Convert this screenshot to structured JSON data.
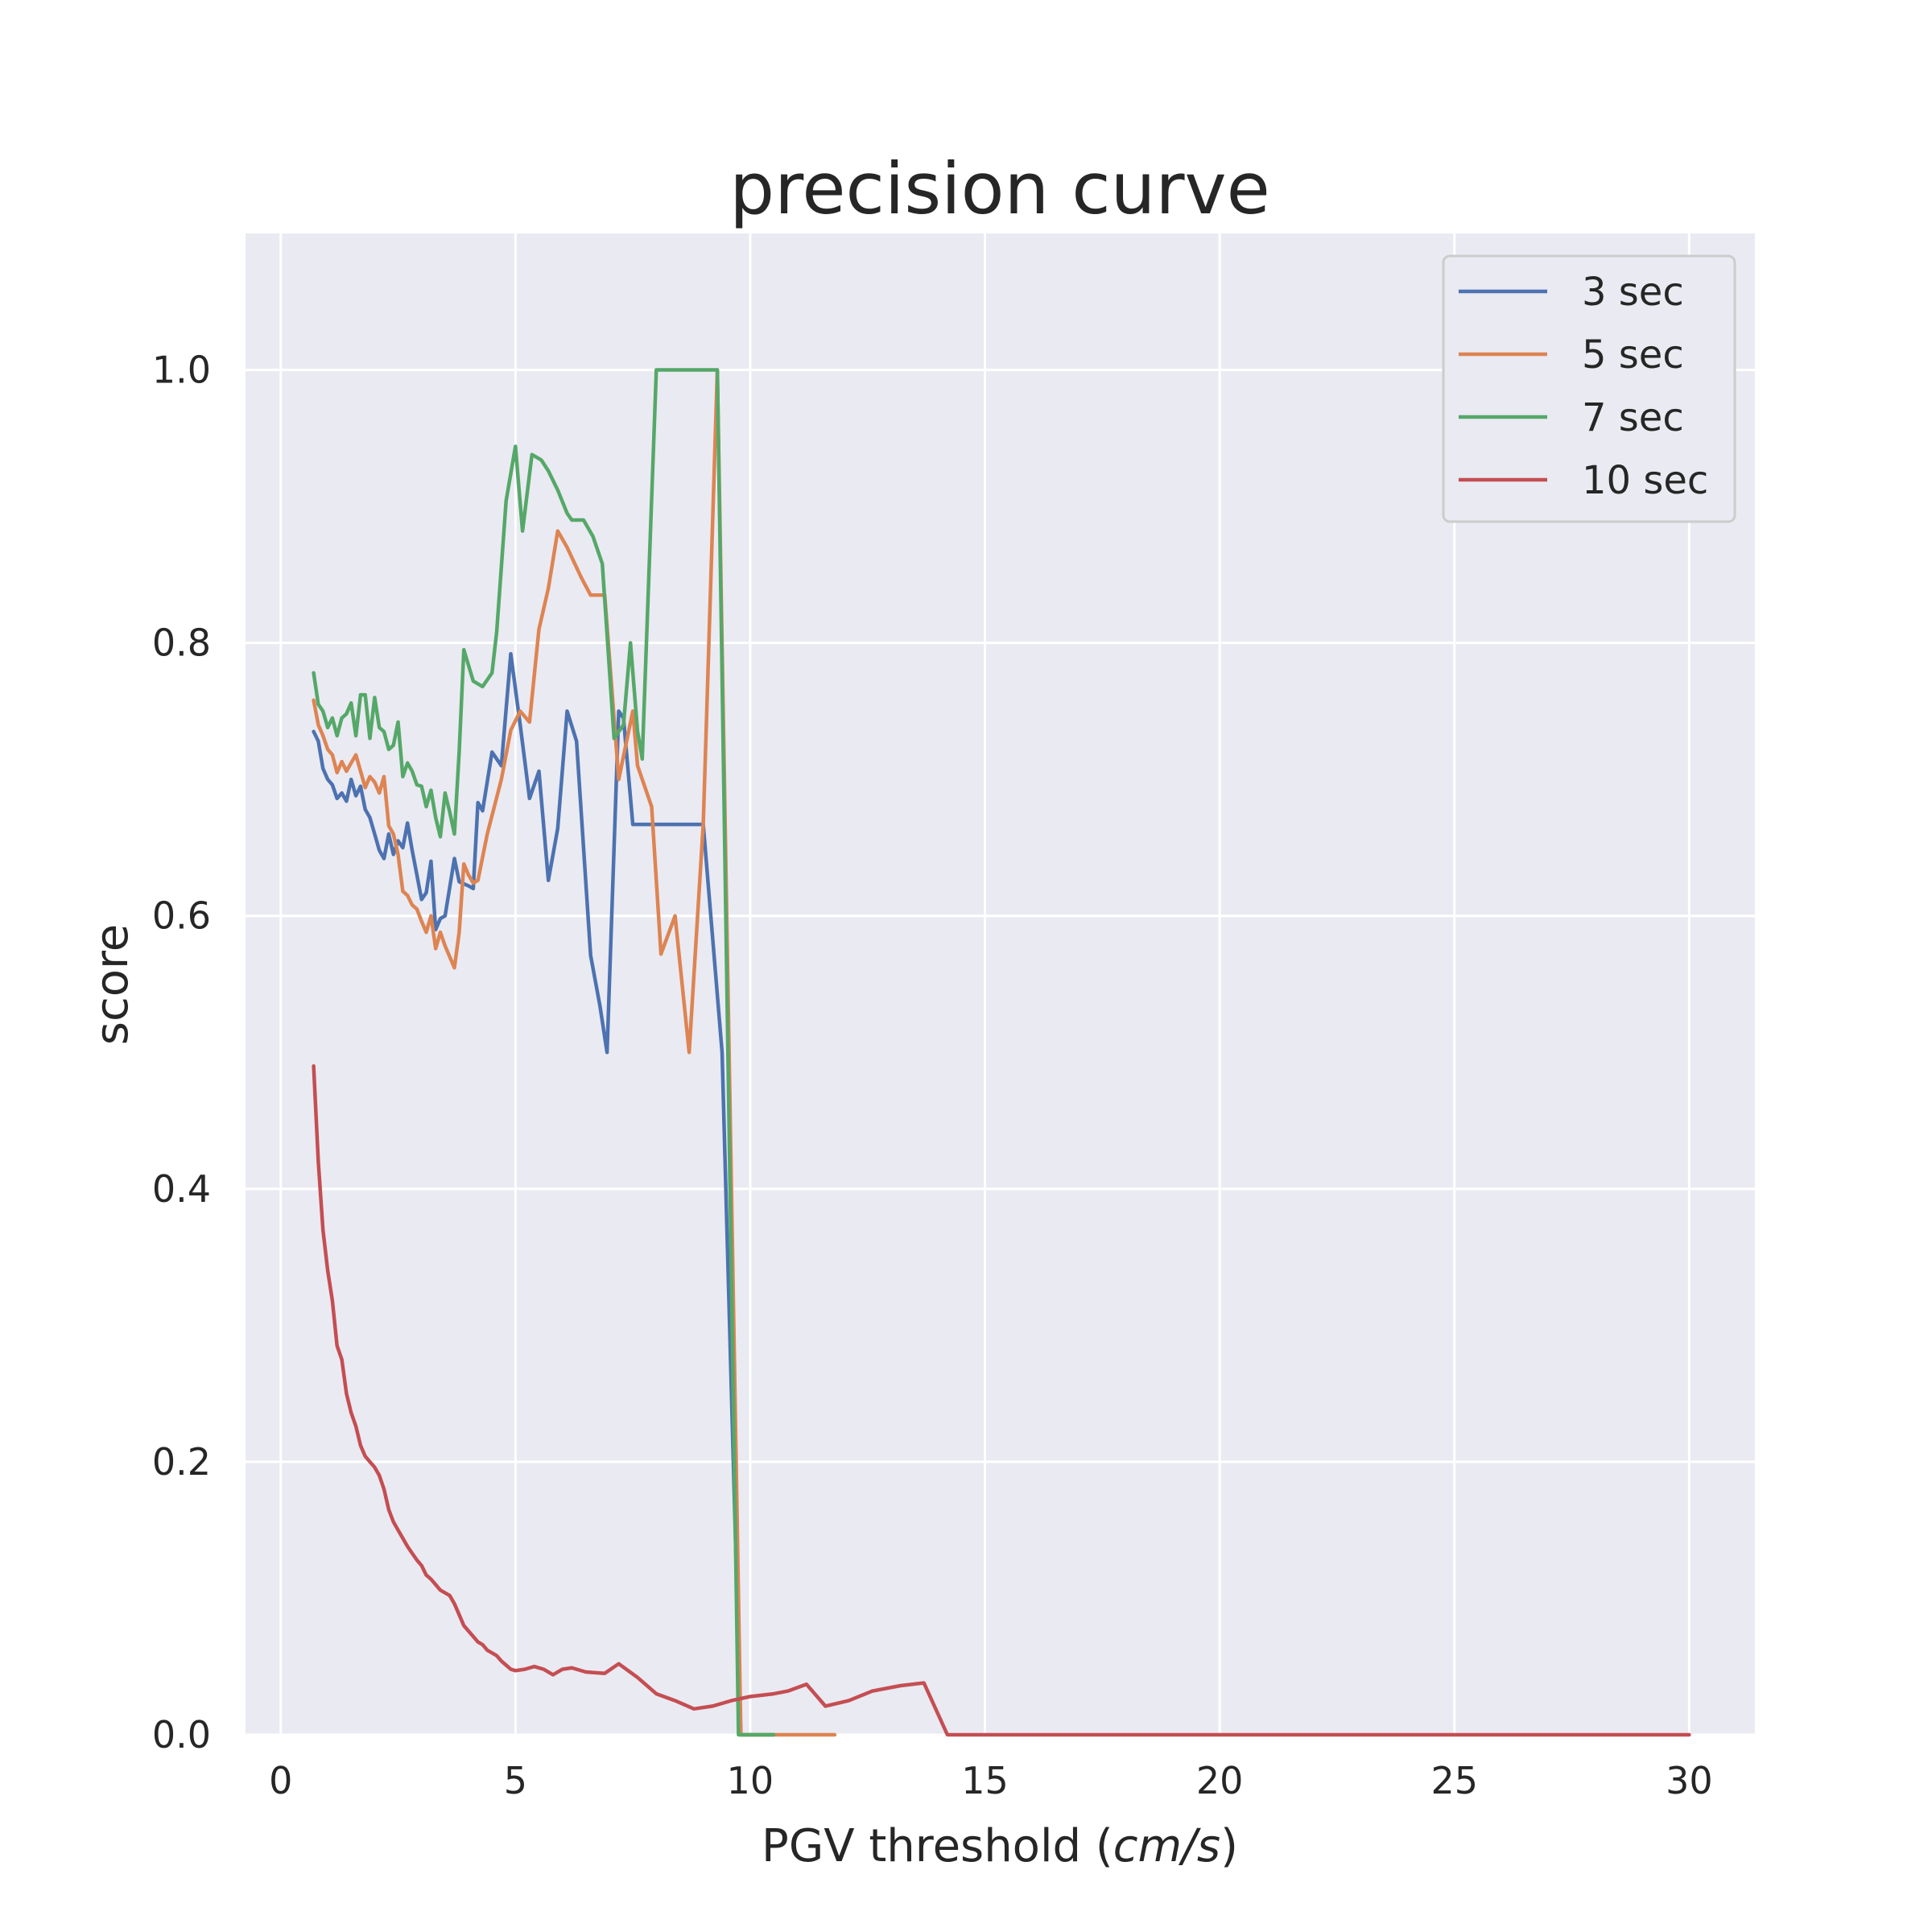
{
  "chart_data": {
    "type": "line",
    "title": "precision curve",
    "xlabel_text": "PGV threshold (",
    "xlabel_unit": "cm/s",
    "xlabel_close": ")",
    "ylabel": "score",
    "xlim": [
      -0.75,
      31.4
    ],
    "ylim": [
      0,
      1.1
    ],
    "xticks": [
      0,
      5,
      10,
      15,
      20,
      25,
      30
    ],
    "yticks": [
      0.0,
      0.2,
      0.4,
      0.6,
      0.8,
      1.0
    ],
    "xtick_labels": [
      "0",
      "5",
      "10",
      "15",
      "20",
      "25",
      "30"
    ],
    "ytick_labels": [
      "0.0",
      "0.2",
      "0.4",
      "0.6",
      "0.8",
      "1.0"
    ],
    "grid": true,
    "legend_position": "top-right",
    "background": "#eaeaf2",
    "grid_color": "#ffffff",
    "series": [
      {
        "name": "3 sec",
        "color": "#4c72b0",
        "points": [
          [
            0.7,
            0.735
          ],
          [
            0.8,
            0.728
          ],
          [
            0.9,
            0.708
          ],
          [
            1.0,
            0.7
          ],
          [
            1.1,
            0.696
          ],
          [
            1.2,
            0.686
          ],
          [
            1.3,
            0.69
          ],
          [
            1.4,
            0.684
          ],
          [
            1.5,
            0.7
          ],
          [
            1.6,
            0.688
          ],
          [
            1.7,
            0.695
          ],
          [
            1.8,
            0.678
          ],
          [
            1.9,
            0.672
          ],
          [
            2.0,
            0.66
          ],
          [
            2.1,
            0.648
          ],
          [
            2.2,
            0.642
          ],
          [
            2.3,
            0.66
          ],
          [
            2.4,
            0.645
          ],
          [
            2.5,
            0.655
          ],
          [
            2.6,
            0.65
          ],
          [
            2.7,
            0.668
          ],
          [
            2.8,
            0.648
          ],
          [
            2.9,
            0.63
          ],
          [
            3.0,
            0.612
          ],
          [
            3.1,
            0.617
          ],
          [
            3.2,
            0.64
          ],
          [
            3.3,
            0.59
          ],
          [
            3.4,
            0.598
          ],
          [
            3.5,
            0.6
          ],
          [
            3.7,
            0.642
          ],
          [
            3.8,
            0.625
          ],
          [
            4.0,
            0.622
          ],
          [
            4.1,
            0.62
          ],
          [
            4.2,
            0.683
          ],
          [
            4.3,
            0.677
          ],
          [
            4.5,
            0.72
          ],
          [
            4.7,
            0.71
          ],
          [
            4.9,
            0.792
          ],
          [
            5.1,
            0.74
          ],
          [
            5.3,
            0.686
          ],
          [
            5.5,
            0.706
          ],
          [
            5.7,
            0.626
          ],
          [
            5.9,
            0.664
          ],
          [
            6.1,
            0.75
          ],
          [
            6.3,
            0.728
          ],
          [
            6.6,
            0.571
          ],
          [
            6.8,
            0.534
          ],
          [
            6.95,
            0.5
          ],
          [
            7.2,
            0.75
          ],
          [
            7.3,
            0.745
          ],
          [
            7.5,
            0.667
          ],
          [
            9.0,
            0.667
          ],
          [
            9.4,
            0.5
          ],
          [
            9.8,
            0.0
          ],
          [
            10.5,
            0.0
          ]
        ]
      },
      {
        "name": "5 sec",
        "color": "#dd8452",
        "points": [
          [
            0.7,
            0.758
          ],
          [
            0.8,
            0.74
          ],
          [
            0.9,
            0.732
          ],
          [
            1.0,
            0.722
          ],
          [
            1.1,
            0.718
          ],
          [
            1.2,
            0.705
          ],
          [
            1.3,
            0.713
          ],
          [
            1.4,
            0.706
          ],
          [
            1.5,
            0.712
          ],
          [
            1.6,
            0.718
          ],
          [
            1.7,
            0.706
          ],
          [
            1.8,
            0.694
          ],
          [
            1.9,
            0.702
          ],
          [
            2.0,
            0.698
          ],
          [
            2.1,
            0.69
          ],
          [
            2.2,
            0.702
          ],
          [
            2.3,
            0.666
          ],
          [
            2.4,
            0.66
          ],
          [
            2.5,
            0.645
          ],
          [
            2.6,
            0.618
          ],
          [
            2.7,
            0.615
          ],
          [
            2.8,
            0.608
          ],
          [
            2.9,
            0.605
          ],
          [
            3.0,
            0.596
          ],
          [
            3.1,
            0.588
          ],
          [
            3.2,
            0.6
          ],
          [
            3.3,
            0.576
          ],
          [
            3.4,
            0.588
          ],
          [
            3.5,
            0.578
          ],
          [
            3.7,
            0.562
          ],
          [
            3.8,
            0.588
          ],
          [
            3.9,
            0.638
          ],
          [
            4.0,
            0.63
          ],
          [
            4.1,
            0.624
          ],
          [
            4.2,
            0.626
          ],
          [
            4.4,
            0.66
          ],
          [
            4.7,
            0.7
          ],
          [
            4.9,
            0.736
          ],
          [
            5.1,
            0.75
          ],
          [
            5.3,
            0.742
          ],
          [
            5.5,
            0.81
          ],
          [
            5.7,
            0.84
          ],
          [
            5.9,
            0.882
          ],
          [
            6.1,
            0.87
          ],
          [
            6.4,
            0.848
          ],
          [
            6.6,
            0.835
          ],
          [
            6.9,
            0.835
          ],
          [
            7.2,
            0.7
          ],
          [
            7.5,
            0.75
          ],
          [
            7.6,
            0.71
          ],
          [
            7.9,
            0.68
          ],
          [
            8.1,
            0.572
          ],
          [
            8.4,
            0.6
          ],
          [
            8.7,
            0.5
          ],
          [
            9.0,
            0.667
          ],
          [
            9.3,
            1.0
          ],
          [
            9.8,
            0.0
          ],
          [
            11.8,
            0.0
          ]
        ]
      },
      {
        "name": "7 sec",
        "color": "#55a868",
        "points": [
          [
            0.7,
            0.778
          ],
          [
            0.8,
            0.755
          ],
          [
            0.9,
            0.75
          ],
          [
            1.0,
            0.738
          ],
          [
            1.1,
            0.745
          ],
          [
            1.2,
            0.732
          ],
          [
            1.3,
            0.745
          ],
          [
            1.4,
            0.748
          ],
          [
            1.5,
            0.756
          ],
          [
            1.6,
            0.732
          ],
          [
            1.7,
            0.762
          ],
          [
            1.8,
            0.762
          ],
          [
            1.9,
            0.73
          ],
          [
            2.0,
            0.76
          ],
          [
            2.1,
            0.738
          ],
          [
            2.2,
            0.735
          ],
          [
            2.3,
            0.722
          ],
          [
            2.4,
            0.725
          ],
          [
            2.5,
            0.742
          ],
          [
            2.6,
            0.702
          ],
          [
            2.7,
            0.712
          ],
          [
            2.8,
            0.706
          ],
          [
            2.9,
            0.696
          ],
          [
            3.0,
            0.695
          ],
          [
            3.1,
            0.68
          ],
          [
            3.2,
            0.692
          ],
          [
            3.3,
            0.672
          ],
          [
            3.4,
            0.658
          ],
          [
            3.5,
            0.69
          ],
          [
            3.6,
            0.676
          ],
          [
            3.7,
            0.66
          ],
          [
            3.8,
            0.72
          ],
          [
            3.9,
            0.795
          ],
          [
            4.1,
            0.772
          ],
          [
            4.3,
            0.768
          ],
          [
            4.5,
            0.778
          ],
          [
            4.6,
            0.808
          ],
          [
            4.8,
            0.904
          ],
          [
            5.0,
            0.944
          ],
          [
            5.15,
            0.882
          ],
          [
            5.35,
            0.938
          ],
          [
            5.55,
            0.934
          ],
          [
            5.7,
            0.926
          ],
          [
            5.9,
            0.912
          ],
          [
            6.1,
            0.895
          ],
          [
            6.2,
            0.89
          ],
          [
            6.45,
            0.89
          ],
          [
            6.65,
            0.878
          ],
          [
            6.85,
            0.858
          ],
          [
            7.1,
            0.73
          ],
          [
            7.3,
            0.74
          ],
          [
            7.45,
            0.8
          ],
          [
            7.6,
            0.735
          ],
          [
            7.7,
            0.715
          ],
          [
            8.0,
            1.0
          ],
          [
            9.3,
            1.0
          ],
          [
            9.75,
            0.0
          ],
          [
            10.5,
            0.0
          ]
        ]
      },
      {
        "name": "10 sec",
        "color": "#c44e52",
        "points": [
          [
            0.7,
            0.49
          ],
          [
            0.8,
            0.42
          ],
          [
            0.9,
            0.37
          ],
          [
            1.0,
            0.34
          ],
          [
            1.1,
            0.318
          ],
          [
            1.2,
            0.285
          ],
          [
            1.3,
            0.275
          ],
          [
            1.4,
            0.25
          ],
          [
            1.5,
            0.236
          ],
          [
            1.6,
            0.226
          ],
          [
            1.7,
            0.212
          ],
          [
            1.8,
            0.204
          ],
          [
            1.9,
            0.2
          ],
          [
            2.0,
            0.196
          ],
          [
            2.1,
            0.19
          ],
          [
            2.2,
            0.18
          ],
          [
            2.3,
            0.165
          ],
          [
            2.4,
            0.156
          ],
          [
            2.5,
            0.15
          ],
          [
            2.6,
            0.144
          ],
          [
            2.7,
            0.138
          ],
          [
            2.8,
            0.133
          ],
          [
            2.9,
            0.128
          ],
          [
            3.0,
            0.124
          ],
          [
            3.1,
            0.117
          ],
          [
            3.2,
            0.114
          ],
          [
            3.3,
            0.11
          ],
          [
            3.4,
            0.106
          ],
          [
            3.5,
            0.104
          ],
          [
            3.6,
            0.102
          ],
          [
            3.7,
            0.096
          ],
          [
            3.8,
            0.088
          ],
          [
            3.9,
            0.08
          ],
          [
            4.0,
            0.076
          ],
          [
            4.1,
            0.072
          ],
          [
            4.2,
            0.068
          ],
          [
            4.3,
            0.066
          ],
          [
            4.4,
            0.062
          ],
          [
            4.5,
            0.06
          ],
          [
            4.6,
            0.058
          ],
          [
            4.7,
            0.054
          ],
          [
            4.8,
            0.051
          ],
          [
            4.9,
            0.048
          ],
          [
            5.0,
            0.047
          ],
          [
            5.2,
            0.048
          ],
          [
            5.4,
            0.05
          ],
          [
            5.6,
            0.048
          ],
          [
            5.8,
            0.044
          ],
          [
            6.0,
            0.048
          ],
          [
            6.2,
            0.049
          ],
          [
            6.5,
            0.046
          ],
          [
            6.9,
            0.045
          ],
          [
            7.2,
            0.052
          ],
          [
            7.6,
            0.042
          ],
          [
            8.0,
            0.03
          ],
          [
            8.4,
            0.025
          ],
          [
            8.8,
            0.019
          ],
          [
            9.2,
            0.021
          ],
          [
            9.6,
            0.025
          ],
          [
            10.0,
            0.028
          ],
          [
            10.5,
            0.03
          ],
          [
            10.8,
            0.032
          ],
          [
            11.2,
            0.037
          ],
          [
            11.6,
            0.021
          ],
          [
            12.1,
            0.025
          ],
          [
            12.6,
            0.032
          ],
          [
            13.2,
            0.036
          ],
          [
            13.7,
            0.038
          ],
          [
            14.2,
            0.0
          ],
          [
            30.0,
            0.0
          ]
        ]
      }
    ]
  }
}
